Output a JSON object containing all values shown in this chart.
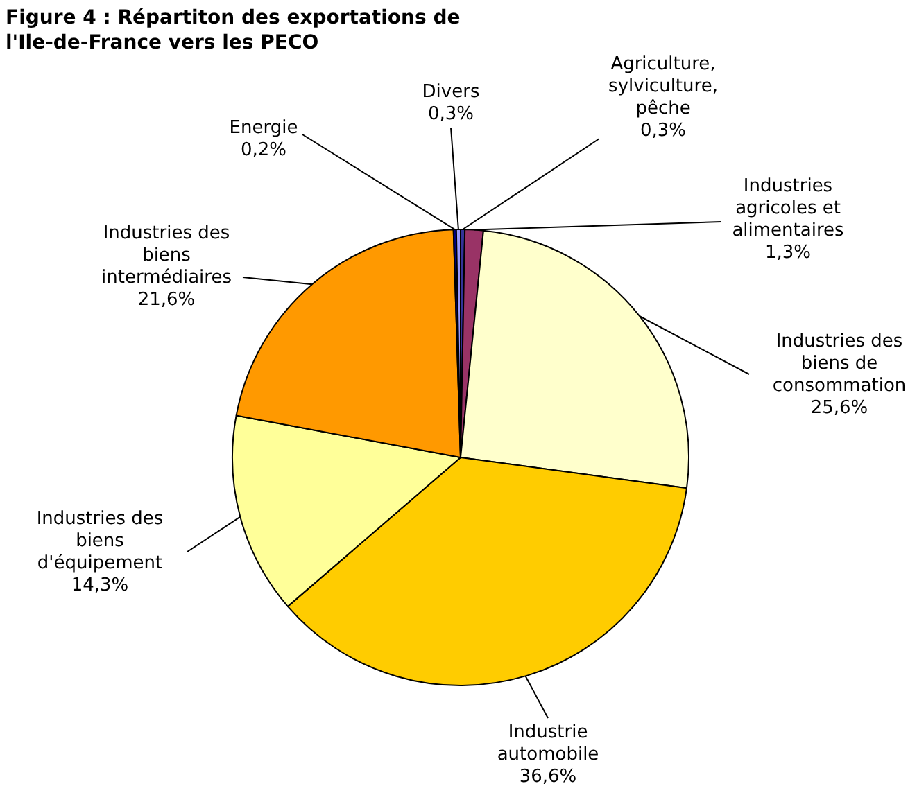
{
  "chart_data": {
    "type": "pie",
    "title": "Figure 4 : Répartiton des exportations de l'Ile-de-France vers les PECO",
    "categories": [
      "Agriculture, sylviculture, pêche",
      "Industries agricoles et alimentaires",
      "Industries des biens de consommation",
      "Industrie automobile",
      "Industries des biens d'équipement",
      "Industries des biens intermédiaires",
      "Energie",
      "Divers"
    ],
    "values": [
      0.3,
      1.3,
      25.6,
      36.6,
      14.3,
      21.6,
      0.2,
      0.3
    ],
    "value_labels": [
      "0,3%",
      "1,3%",
      "25,6%",
      "36,6%",
      "14,3%",
      "21,6%",
      "0,2%",
      "0,3%"
    ],
    "colors": [
      "#333399",
      "#993366",
      "#ffffcc",
      "#ffcc00",
      "#ffff99",
      "#ff9900",
      "#000080",
      "#9999ff"
    ]
  }
}
